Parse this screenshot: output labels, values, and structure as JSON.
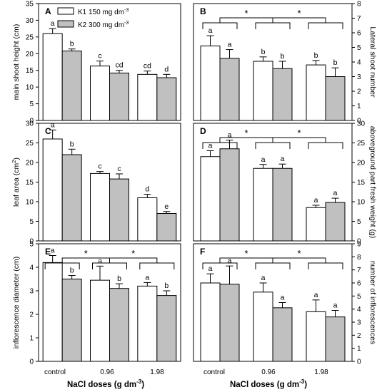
{
  "figure": {
    "x_title": "NaCl doses  (g dm",
    "x_title_sup": "-3",
    "x_title_end": ")",
    "categories": [
      "control",
      "0.96",
      "1.98"
    ]
  },
  "legend": {
    "k1": "K1  150 mg dm",
    "k2": "K2  300 mg dm",
    "unit_sup": "-3"
  },
  "chart_data": [
    {
      "panel": "A",
      "type": "bar",
      "axis_side": "left",
      "ylabel": "main shoot height (cm)",
      "ylim": [
        0,
        35
      ],
      "yticks": [
        0,
        5,
        10,
        15,
        20,
        25,
        30,
        35
      ],
      "categories": [
        "control",
        "0.96",
        "1.98"
      ],
      "series": [
        {
          "name": "K1  150 mg dm-3",
          "values": [
            26.0,
            16.3,
            13.8
          ],
          "errors": [
            1.5,
            1.5,
            1.0
          ],
          "letters": [
            "a",
            "c",
            "cd"
          ]
        },
        {
          "name": "K2  300 mg dm-3",
          "values": [
            20.8,
            14.2,
            12.8
          ],
          "errors": [
            0.6,
            0.8,
            1.0
          ],
          "letters": [
            "b",
            "cd",
            "d"
          ]
        }
      ],
      "brackets": false
    },
    {
      "panel": "B",
      "type": "bar",
      "axis_side": "right",
      "ylabel": "Lateral shoot number",
      "ylim": [
        0,
        8
      ],
      "yticks": [
        0,
        1,
        2,
        3,
        4,
        5,
        6,
        7,
        8
      ],
      "categories": [
        "control",
        "0.96",
        "1.98"
      ],
      "series": [
        {
          "values": [
            5.1,
            4.05,
            3.8
          ],
          "errors": [
            0.7,
            0.3,
            0.3
          ],
          "letters": [
            "a",
            "b",
            "b"
          ]
        },
        {
          "values": [
            4.25,
            3.55,
            3.0
          ],
          "errors": [
            0.6,
            0.5,
            0.6
          ],
          "letters": [
            "a",
            "b",
            "b"
          ]
        }
      ],
      "star_label": "*",
      "brackets": true
    },
    {
      "panel": "C",
      "type": "bar",
      "axis_side": "left",
      "ylabel": "leaf area (cm2)",
      "ylim": [
        0,
        30
      ],
      "yticks": [
        0,
        5,
        10,
        15,
        20,
        25,
        30
      ],
      "categories": [
        "control",
        "0.96",
        "1.98"
      ],
      "series": [
        {
          "values": [
            26.0,
            17.2,
            11.0
          ],
          "errors": [
            2.3,
            0.5,
            0.9
          ],
          "letters": [
            "a",
            "c",
            "d"
          ]
        },
        {
          "values": [
            22.0,
            15.8,
            7.0
          ],
          "errors": [
            1.4,
            1.3,
            0.5
          ],
          "letters": [
            "b",
            "c",
            "e"
          ]
        }
      ],
      "brackets": false
    },
    {
      "panel": "D",
      "type": "bar",
      "axis_side": "right",
      "ylabel": "aboveground part fresh weight (g)",
      "ylim": [
        0,
        30
      ],
      "yticks": [
        0,
        5,
        10,
        15,
        20,
        25,
        30
      ],
      "categories": [
        "control",
        "0.96",
        "1.98"
      ],
      "series": [
        {
          "values": [
            21.5,
            18.5,
            8.5
          ],
          "errors": [
            1.5,
            1.0,
            0.6
          ],
          "letters": [
            "a",
            "a",
            "a"
          ]
        },
        {
          "values": [
            23.5,
            18.5,
            9.8
          ],
          "errors": [
            2.2,
            1.1,
            1.1
          ],
          "letters": [
            "a",
            "a",
            "a"
          ]
        }
      ],
      "star_label": "*",
      "brackets": true
    },
    {
      "panel": "E",
      "type": "bar",
      "axis_side": "left",
      "ylabel": "inflorescence diameter (cm)",
      "ylim": [
        0,
        5
      ],
      "yticks": [
        0,
        1,
        2,
        3,
        4,
        5
      ],
      "categories": [
        "control",
        "0.96",
        "1.98"
      ],
      "series": [
        {
          "values": [
            4.2,
            3.45,
            3.2
          ],
          "errors": [
            0.3,
            0.6,
            0.15
          ],
          "letters": [
            "a",
            "a",
            "a"
          ]
        },
        {
          "values": [
            3.5,
            3.1,
            2.8
          ],
          "errors": [
            0.15,
            0.2,
            0.2
          ],
          "letters": [
            "b",
            "b",
            "b"
          ]
        }
      ],
      "star_label": "*",
      "brackets": true
    },
    {
      "panel": "F",
      "type": "bar",
      "axis_side": "right",
      "ylabel": "number of inflorescences",
      "ylim": [
        0,
        9
      ],
      "yticks": [
        0,
        1,
        2,
        3,
        4,
        5,
        6,
        7,
        8,
        9
      ],
      "categories": [
        "control",
        "0.96",
        "1.98"
      ],
      "series": [
        {
          "values": [
            6.0,
            5.3,
            3.8
          ],
          "errors": [
            0.7,
            0.7,
            0.9
          ],
          "letters": [
            "a",
            "a",
            "a"
          ]
        },
        {
          "values": [
            5.9,
            4.1,
            3.4
          ],
          "errors": [
            1.4,
            0.4,
            0.5
          ],
          "letters": [
            "a",
            "a",
            "a"
          ]
        }
      ],
      "star_label": "*",
      "brackets": true
    }
  ]
}
